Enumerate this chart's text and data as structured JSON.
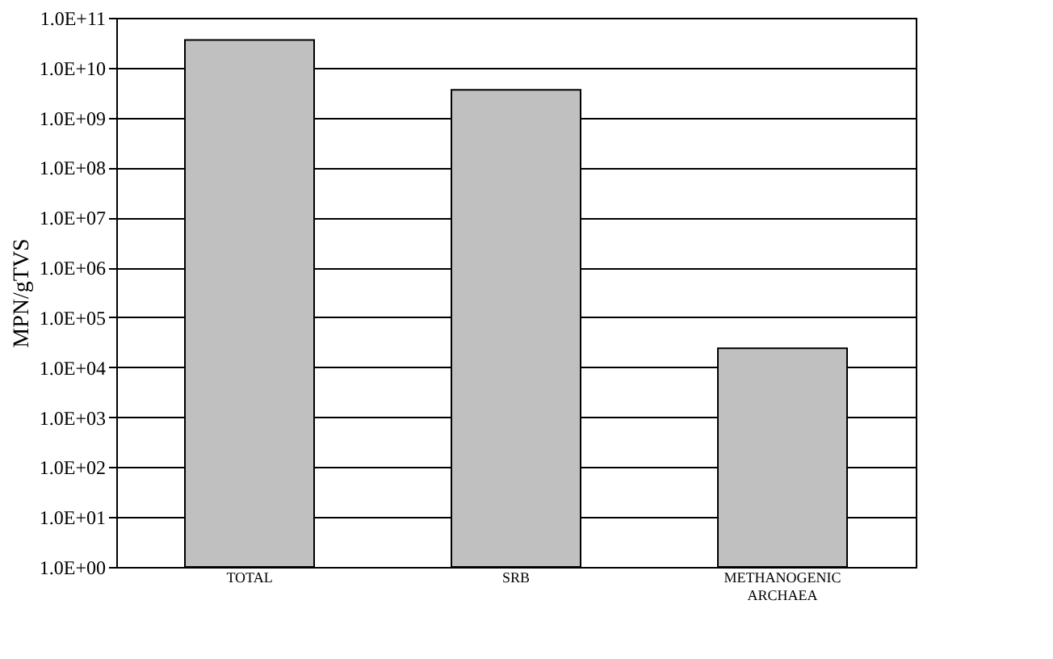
{
  "chart_data": {
    "type": "bar",
    "ylabel": "MPN/gTVS",
    "categories": [
      "TOTAL",
      "SRB",
      "METHANOGENIC ARCHAEA"
    ],
    "values": [
      36000000000,
      3600000000,
      24000
    ],
    "color": "#c0c0c0",
    "log": true,
    "grid": "y",
    "ylim": [
      1,
      100000000000
    ],
    "yticks": [
      {
        "value": 1,
        "label": "1.0E+00"
      },
      {
        "value": 10,
        "label": "1.0E+01"
      },
      {
        "value": 100,
        "label": "1.0E+02"
      },
      {
        "value": 1000,
        "label": "1.0E+03"
      },
      {
        "value": 10000,
        "label": "1.0E+04"
      },
      {
        "value": 100000,
        "label": "1.0E+05"
      },
      {
        "value": 1000000,
        "label": "1.0E+06"
      },
      {
        "value": 10000000,
        "label": "1.0E+07"
      },
      {
        "value": 100000000,
        "label": "1.0E+08"
      },
      {
        "value": 1000000000,
        "label": "1.0E+09"
      },
      {
        "value": 10000000000,
        "label": "1.0E+10"
      },
      {
        "value": 100000000000,
        "label": "1.0E+11"
      }
    ]
  }
}
